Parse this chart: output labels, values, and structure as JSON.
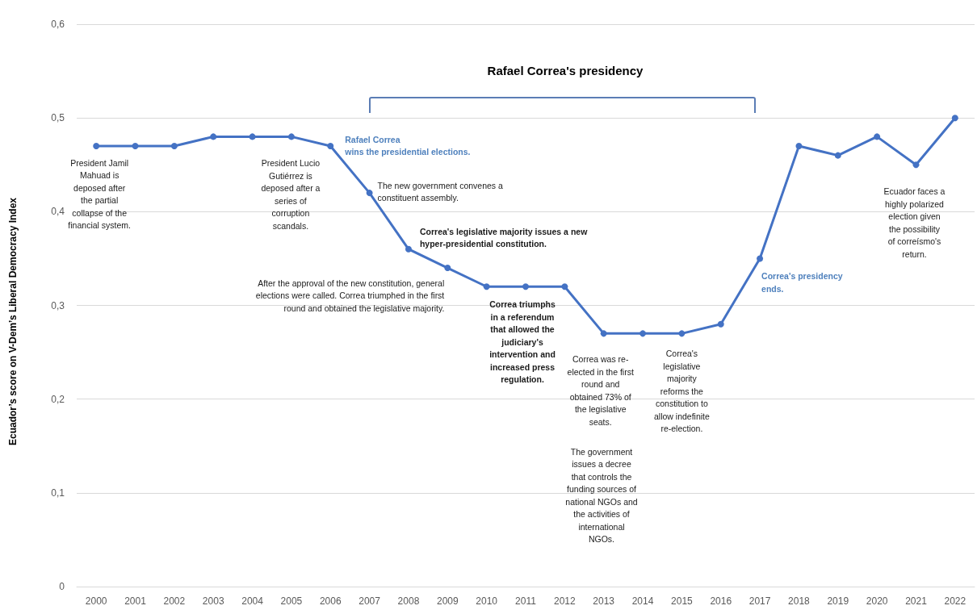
{
  "chart_data": {
    "type": "line",
    "ylabel": "Ecuador’s score on V-Dem’s Liberal Democracy Index",
    "categories": [
      "2000",
      "2001",
      "2002",
      "2003",
      "2004",
      "2005",
      "2006",
      "2007",
      "2008",
      "2009",
      "2010",
      "2011",
      "2012",
      "2013",
      "2014",
      "2015",
      "2016",
      "2017",
      "2018",
      "2019",
      "2020",
      "2021",
      "2022"
    ],
    "series": [
      {
        "color": "#4472c4",
        "values": [
          0.47,
          0.47,
          0.47,
          0.48,
          0.48,
          0.48,
          0.47,
          0.42,
          0.36,
          0.34,
          0.32,
          0.32,
          0.32,
          0.27,
          0.27,
          0.27,
          0.28,
          0.35,
          0.47,
          0.46,
          0.48,
          0.45,
          0.5
        ]
      }
    ],
    "ylim": [
      0,
      0.6
    ],
    "yticks": [
      0,
      {
        "value": 0.1,
        "label": "0,1"
      },
      {
        "value": 0.2,
        "label": "0,2"
      },
      {
        "value": 0.3,
        "label": "0,3"
      },
      {
        "value": 0.4,
        "label": "0,4"
      },
      {
        "value": 0.5,
        "label": "0,5"
      },
      {
        "value": 0.6,
        "label": "0,6"
      }
    ],
    "grid": "y",
    "marker": "circle",
    "line_style": "solid",
    "annotations": [
      "Rafael Correa's presidency",
      {
        "text": "President Jamil\nMahuad is\ndeposed after\nthe partial\ncollapse of the\nfinancial system.",
        "x": "2000",
        "y": 0.47
      },
      {
        "text": "President Lucio\nGutiérrez is\ndeposed after a\nseries of\ncorruption\nscandals.",
        "x": "2005",
        "y": 0.48
      },
      {
        "text": "Rafael Correa\nwins the presidential elections.",
        "x": "2006",
        "y": 0.47
      },
      {
        "text": "The new government convenes a\nconstituent assembly.",
        "x": "2007",
        "y": 0.42
      },
      {
        "text": "Correa's legislative majority issues a new\nhyper-presidential constitution.",
        "x": "2008",
        "y": 0.36
      },
      {
        "text": "After the approval of the new constitution, general\nelections were called. Correa triumphed in the first\nround and obtained the legislative majority.",
        "x": "2009",
        "y": 0.34
      },
      {
        "text": "Correa triumphs\nin a referendum\nthat allowed the\njudiciary's\nintervention and\nincreased press\nregulation.",
        "x": "2011",
        "y": 0.32
      },
      {
        "text": "Correa was re-\nelected in the first\nround and\nobtained 73% of\nthe legislative\nseats.",
        "x": "2013",
        "y": 0.27
      },
      "The government\nissues a decree\nthat controls the\nfunding sources of\nnational NGOs and\nthe activities of\ninternational\nNGOs.",
      {
        "text": "Correa's\nlegislative\nmajority\nreforms the\nconstitution to\nallow indefinite\nre-election.",
        "x": "2015",
        "y": 0.27
      },
      {
        "text": "Correa's presidency\nends.",
        "x": "2017",
        "y": 0.35
      },
      {
        "text": "Ecuador faces a\nhighly polarized\nelection given\nthe possibility\nof correísmo's\nreturn.",
        "x": "2021",
        "y": 0.45
      }
    ]
  }
}
